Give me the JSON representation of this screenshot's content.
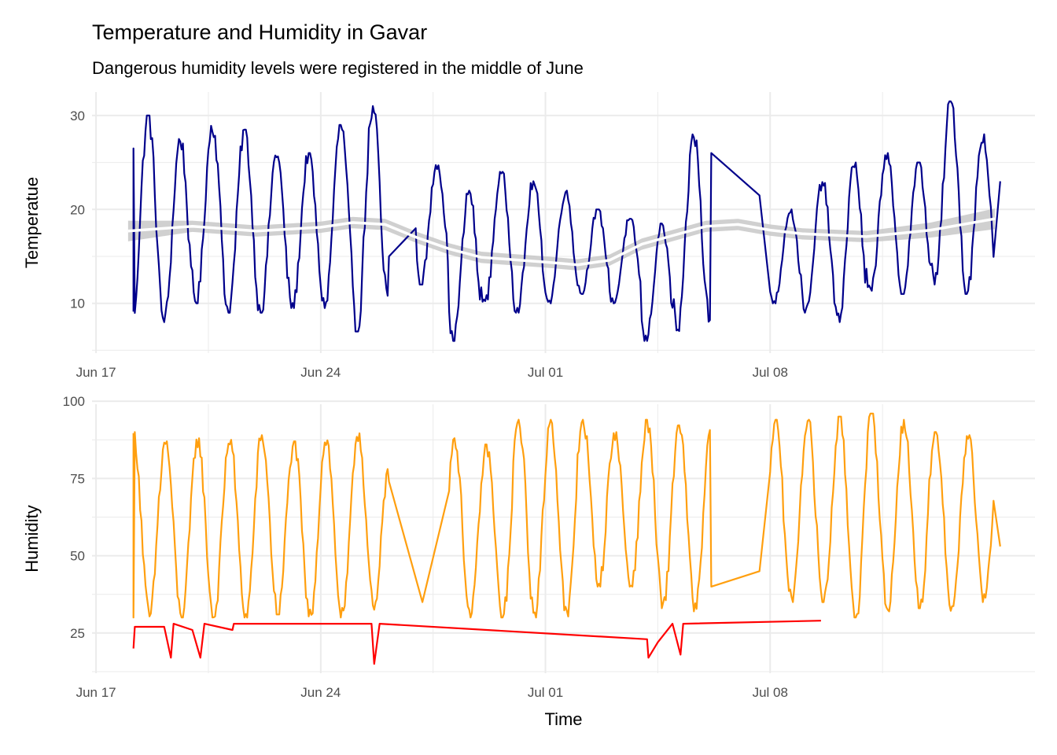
{
  "title": "Temperature and Humidity in Gavar",
  "subtitle": "Dangerous humidity levels were registered in the middle of June",
  "colors": {
    "temperature": "#00008b",
    "humidity": "#ff9f0f",
    "danger": "#ff0000",
    "smooth": "#ffffff",
    "band": "#c8c8c8",
    "grid": "#ebebeb"
  },
  "chart_data": [
    {
      "type": "line",
      "panel": "top",
      "xlabel": "",
      "ylabel": "Temperatue",
      "xlim": [
        "2023-06-16T21:00",
        "2023-07-16T06:00"
      ],
      "ylim": [
        4.7,
        32.5
      ],
      "x_ticks": [
        "Jun 17",
        "Jun 24",
        "Jul 01",
        "Jul 08"
      ],
      "y_ticks": [
        10,
        20,
        30
      ],
      "grid": true,
      "series": [
        {
          "name": "",
          "color": "#00008b",
          "daily_cycle": [
            {
              "date": "2023-06-18",
              "max": 30,
              "min": 8
            },
            {
              "date": "2023-06-19",
              "max": 27.5,
              "min": 8
            },
            {
              "date": "2023-06-20",
              "max": 29,
              "min": 10
            },
            {
              "date": "2023-06-21",
              "max": 28.5,
              "min": 9
            },
            {
              "date": "2023-06-22",
              "max": 26,
              "min": 9
            },
            {
              "date": "2023-06-23",
              "max": 26,
              "min": 9.5
            },
            {
              "date": "2023-06-24",
              "max": 29,
              "min": 9.5
            },
            {
              "date": "2023-06-25",
              "max": 31,
              "min": 7
            },
            {
              "date": "2023-06-26",
              "max": 27,
              "min": 10
            },
            {
              "date": "2023-06-27",
              "max": 25,
              "min": 12
            },
            {
              "date": "2023-06-28",
              "max": 22,
              "min": 6
            },
            {
              "date": "2023-06-29",
              "max": 24,
              "min": 10
            },
            {
              "date": "2023-06-30",
              "max": 23,
              "min": 9
            },
            {
              "date": "2023-07-01",
              "max": 22,
              "min": 10
            },
            {
              "date": "2023-07-02",
              "max": 20,
              "min": 11
            },
            {
              "date": "2023-07-03",
              "max": 19,
              "min": 10
            },
            {
              "date": "2023-07-04",
              "max": 18.5,
              "min": 6
            },
            {
              "date": "2023-07-05",
              "max": 28,
              "min": 7
            },
            {
              "date": "2023-07-06",
              "max": 30.5,
              "min": 8
            },
            {
              "date": "2023-07-08",
              "max": 20,
              "min": 10
            },
            {
              "date": "2023-07-09",
              "max": 23,
              "min": 9
            },
            {
              "date": "2023-07-10",
              "max": 25,
              "min": 8
            },
            {
              "date": "2023-07-11",
              "max": 26,
              "min": 11
            },
            {
              "date": "2023-07-12",
              "max": 25,
              "min": 11
            },
            {
              "date": "2023-07-13",
              "max": 31.5,
              "min": 12
            },
            {
              "date": "2023-07-14",
              "max": 28,
              "min": 11
            }
          ],
          "endpoints": [
            {
              "x": "2023-06-18T04:00",
              "y": 26.5
            },
            {
              "x": "2023-07-15T04:00",
              "y": 23
            }
          ],
          "gaps": [
            {
              "from": {
                "x": "2023-06-26T03:00",
                "y": 15
              },
              "to": {
                "x": "2023-06-26T23:00",
                "y": 18
              }
            },
            {
              "from": {
                "x": "2023-07-06T04:00",
                "y": 26
              },
              "to": {
                "x": "2023-07-07T16:00",
                "y": 21.5
              }
            }
          ]
        }
      ],
      "smooth": {
        "color": "#ffffff",
        "band_color": "#c8c8c8",
        "points": [
          {
            "x": "2023-06-18",
            "y": 17.7,
            "se": 1.1
          },
          {
            "x": "2023-06-20",
            "y": 18.2,
            "se": 0.6
          },
          {
            "x": "2023-06-22",
            "y": 17.7,
            "se": 0.6
          },
          {
            "x": "2023-06-24",
            "y": 18.1,
            "se": 0.6
          },
          {
            "x": "2023-06-25",
            "y": 18.6,
            "se": 0.6
          },
          {
            "x": "2023-06-26",
            "y": 18.4,
            "se": 0.6
          },
          {
            "x": "2023-06-27",
            "y": 17.0,
            "se": 0.6
          },
          {
            "x": "2023-06-28",
            "y": 15.8,
            "se": 0.6
          },
          {
            "x": "2023-06-29",
            "y": 14.9,
            "se": 0.6
          },
          {
            "x": "2023-07-01",
            "y": 14.4,
            "se": 0.6
          },
          {
            "x": "2023-07-02",
            "y": 14.1,
            "se": 0.6
          },
          {
            "x": "2023-07-03",
            "y": 14.6,
            "se": 0.6
          },
          {
            "x": "2023-07-04",
            "y": 16.3,
            "se": 0.6
          },
          {
            "x": "2023-07-06",
            "y": 18.2,
            "se": 0.6
          },
          {
            "x": "2023-07-07",
            "y": 18.4,
            "se": 0.6
          },
          {
            "x": "2023-07-08",
            "y": 17.8,
            "se": 0.6
          },
          {
            "x": "2023-07-09",
            "y": 17.4,
            "se": 0.6
          },
          {
            "x": "2023-07-11",
            "y": 17.1,
            "se": 0.6
          },
          {
            "x": "2023-07-13",
            "y": 17.8,
            "se": 0.8
          },
          {
            "x": "2023-07-15",
            "y": 19.0,
            "se": 1.1
          }
        ]
      }
    },
    {
      "type": "line",
      "panel": "bottom",
      "xlabel": "Time",
      "ylabel": "Humidity",
      "xlim": [
        "2023-06-16T21:00",
        "2023-07-16T06:00"
      ],
      "ylim": [
        12,
        99
      ],
      "x_ticks": [
        "Jun 17",
        "Jun 24",
        "Jul 01",
        "Jul 08"
      ],
      "y_ticks": [
        25,
        50,
        75,
        100
      ],
      "grid": true,
      "series": [
        {
          "name": "",
          "color": "#ff9f0f",
          "daily_cycle": [
            {
              "date": "2023-06-18",
              "max": 90,
              "min": 30
            },
            {
              "date": "2023-06-19",
              "max": 87,
              "min": 30
            },
            {
              "date": "2023-06-20",
              "max": 88,
              "min": 30
            },
            {
              "date": "2023-06-21",
              "max": 88,
              "min": 30
            },
            {
              "date": "2023-06-22",
              "max": 89,
              "min": 31
            },
            {
              "date": "2023-06-23",
              "max": 87,
              "min": 30
            },
            {
              "date": "2023-06-24",
              "max": 88,
              "min": 30
            },
            {
              "date": "2023-06-25",
              "max": 90,
              "min": 32
            },
            {
              "date": "2023-06-26",
              "max": 84,
              "min": 32
            },
            {
              "date": "2023-06-28",
              "max": 88,
              "min": 30
            },
            {
              "date": "2023-06-29",
              "max": 86,
              "min": 30
            },
            {
              "date": "2023-06-30",
              "max": 94,
              "min": 30
            },
            {
              "date": "2023-07-01",
              "max": 94,
              "min": 30
            },
            {
              "date": "2023-07-02",
              "max": 94,
              "min": 40
            },
            {
              "date": "2023-07-03",
              "max": 90,
              "min": 40
            },
            {
              "date": "2023-07-04",
              "max": 94,
              "min": 33
            },
            {
              "date": "2023-07-05",
              "max": 93,
              "min": 32
            },
            {
              "date": "2023-07-06",
              "max": 92,
              "min": 32
            },
            {
              "date": "2023-07-08",
              "max": 94,
              "min": 35
            },
            {
              "date": "2023-07-09",
              "max": 94,
              "min": 35
            },
            {
              "date": "2023-07-10",
              "max": 95,
              "min": 30
            },
            {
              "date": "2023-07-11",
              "max": 96,
              "min": 32
            },
            {
              "date": "2023-07-12",
              "max": 94,
              "min": 33
            },
            {
              "date": "2023-07-13",
              "max": 90,
              "min": 32
            },
            {
              "date": "2023-07-14",
              "max": 89,
              "min": 35
            }
          ],
          "endpoints": [
            {
              "x": "2023-06-18T04:00",
              "y": 30
            },
            {
              "x": "2023-07-15T04:00",
              "y": 53
            }
          ],
          "gaps": [
            {
              "from": {
                "x": "2023-06-26T03:00",
                "y": 74
              },
              "to": {
                "x": "2023-06-27T04:00",
                "y": 35
              }
            },
            {
              "from": {
                "x": "2023-07-06T04:00",
                "y": 40
              },
              "to": {
                "x": "2023-07-07T16:00",
                "y": 45
              }
            }
          ]
        },
        {
          "name": "",
          "color": "#ff0000",
          "points": [
            {
              "x": "2023-06-18T04:00",
              "y": 20
            },
            {
              "x": "2023-06-18T05:00",
              "y": 27
            },
            {
              "x": "2023-06-19T03:00",
              "y": 27
            },
            {
              "x": "2023-06-19T08:00",
              "y": 17
            },
            {
              "x": "2023-06-19T10:00",
              "y": 28
            },
            {
              "x": "2023-06-20T00:00",
              "y": 26
            },
            {
              "x": "2023-06-20T06:00",
              "y": 17
            },
            {
              "x": "2023-06-20T09:00",
              "y": 28
            },
            {
              "x": "2023-06-21T06:00",
              "y": 26
            },
            {
              "x": "2023-06-21T07:00",
              "y": 28
            },
            {
              "x": "2023-06-25T14:00",
              "y": 28
            },
            {
              "x": "2023-06-25T16:00",
              "y": 15
            },
            {
              "x": "2023-06-25T20:00",
              "y": 28
            },
            {
              "x": "2023-07-04T04:00",
              "y": 23
            },
            {
              "x": "2023-07-04T05:00",
              "y": 17
            },
            {
              "x": "2023-07-04T12:00",
              "y": 22
            },
            {
              "x": "2023-07-04T23:00",
              "y": 28
            },
            {
              "x": "2023-07-05T05:00",
              "y": 18
            },
            {
              "x": "2023-07-05T07:00",
              "y": 28
            },
            {
              "x": "2023-07-09T14:00",
              "y": 29
            }
          ]
        }
      ]
    }
  ]
}
